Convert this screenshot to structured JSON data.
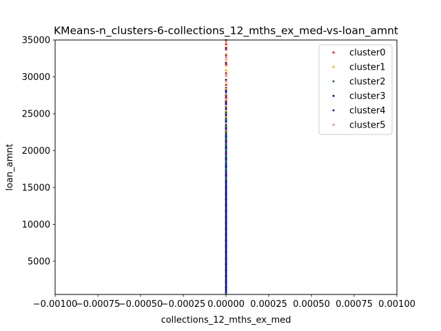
{
  "chart_data": {
    "type": "scatter",
    "title": "KMeans-n_clusters-6-collections_12_mths_ex_med-vs-loan_amnt",
    "xlabel": "collections_12_mths_ex_med",
    "ylabel": "loan_amnt",
    "xlim": [
      -0.001,
      0.001
    ],
    "ylim": [
      500,
      35000
    ],
    "x_ticks": [
      -0.001,
      -0.00075,
      -0.0005,
      -0.00025,
      0.0,
      0.00025,
      0.0005,
      0.00075,
      0.001
    ],
    "x_tick_labels": [
      "−0.00100",
      "−0.00075",
      "−0.00050",
      "−0.00025",
      "0.00000",
      "0.00025",
      "0.00050",
      "0.00075",
      "0.00100"
    ],
    "y_ticks": [
      5000,
      10000,
      15000,
      20000,
      25000,
      30000,
      35000
    ],
    "y_tick_labels": [
      "5000",
      "10000",
      "15000",
      "20000",
      "25000",
      "30000",
      "35000"
    ],
    "grid": false,
    "legend_position": "top-right",
    "series": [
      {
        "name": "cluster0",
        "color": "#ff0000",
        "x": [
          0,
          0,
          0,
          0,
          0,
          0,
          0,
          0
        ],
        "y": [
          27400,
          28900,
          30500,
          31700,
          32900,
          33700,
          34400,
          35000
        ]
      },
      {
        "name": "cluster1",
        "color": "#ffa500",
        "x": [
          0,
          0,
          0,
          0,
          0,
          0,
          0,
          0,
          0,
          0,
          0,
          0,
          0,
          0,
          0,
          0
        ],
        "y": [
          22800,
          23700,
          24600,
          25400,
          26100,
          26900,
          27700,
          28400,
          29300,
          30100,
          30900,
          31500,
          32300,
          33100,
          34000,
          34800
        ]
      },
      {
        "name": "cluster2",
        "color": "#008000",
        "x": [
          0,
          0,
          0,
          0,
          0,
          0,
          0,
          0,
          0,
          0,
          0,
          0,
          0,
          0
        ],
        "y": [
          600,
          16300,
          17500,
          18500,
          19300,
          20100,
          20900,
          21700,
          22500,
          23300,
          24200,
          25100,
          25900,
          26700
        ]
      },
      {
        "name": "cluster3",
        "color": "#0000cd",
        "x": [
          0,
          0,
          0,
          0,
          0,
          0,
          0,
          0,
          0,
          0,
          0,
          0,
          0,
          0,
          0,
          0,
          0,
          0,
          0,
          0,
          0,
          0,
          0,
          0,
          0,
          0,
          0,
          0
        ],
        "y": [
          600,
          1400,
          2200,
          3000,
          3800,
          4600,
          5400,
          6200,
          7000,
          7800,
          8600,
          9400,
          10200,
          11000,
          11800,
          12600,
          13400,
          14200,
          15000,
          15800,
          16700,
          17800,
          18900,
          20400,
          21900,
          24000,
          26300,
          28500
        ]
      },
      {
        "name": "cluster4",
        "color": "#4b0082",
        "x": [
          0,
          0,
          0,
          0,
          0,
          0,
          0,
          0
        ],
        "y": [
          19700,
          21200,
          22900,
          24800,
          26600,
          29600,
          31900,
          33900
        ]
      },
      {
        "name": "cluster5",
        "color": "#ff69b4",
        "x": [
          0,
          0,
          0,
          0
        ],
        "y": [
          27000,
          30200,
          32600,
          34600
        ]
      }
    ]
  }
}
